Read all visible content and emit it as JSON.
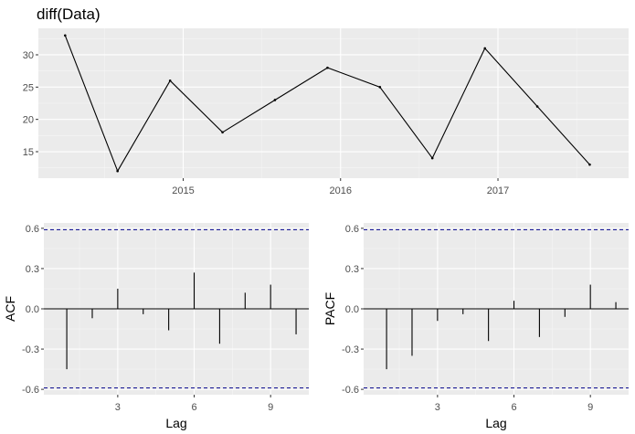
{
  "chart_data": [
    {
      "type": "line",
      "title": "diff(Data)",
      "xlabel": "",
      "ylabel": "",
      "x": [
        2014.25,
        2014.583,
        2014.917,
        2015.25,
        2015.583,
        2015.917,
        2016.25,
        2016.583,
        2016.917,
        2017.25,
        2017.583
      ],
      "values": [
        33,
        12,
        26,
        18,
        23,
        28,
        25,
        14,
        31,
        22,
        13
      ],
      "xticks": [
        "2015",
        "2016",
        "2017"
      ],
      "xtick_values": [
        2015,
        2016,
        2017
      ],
      "yticks": [
        "15",
        "20",
        "25",
        "30"
      ],
      "ytick_values": [
        15,
        20,
        25,
        30
      ],
      "xlim": [
        2014.08,
        2017.83
      ],
      "ylim": [
        10.9,
        34.1
      ],
      "grid": true,
      "colors": {
        "line": "#000000",
        "panel": "#ebebeb"
      }
    },
    {
      "type": "bar",
      "title": "",
      "xlabel": "Lag",
      "ylabel": "ACF",
      "lags": [
        1,
        2,
        3,
        4,
        5,
        6,
        7,
        8,
        9,
        10
      ],
      "values": [
        -0.45,
        -0.07,
        0.15,
        -0.04,
        -0.16,
        0.27,
        -0.26,
        0.12,
        0.18,
        -0.19
      ],
      "xticks": [
        "3",
        "6",
        "9"
      ],
      "xtick_values": [
        3,
        6,
        9
      ],
      "yticks": [
        "-0.6",
        "-0.3",
        "0.0",
        "0.3",
        "0.6"
      ],
      "ytick_values": [
        -0.6,
        -0.3,
        0.0,
        0.3,
        0.6
      ],
      "confidence_bound": 0.59,
      "xlim": [
        0.1,
        10.5
      ],
      "ylim": [
        -0.64,
        0.64
      ],
      "grid": true,
      "colors": {
        "bar": "#000000",
        "bound": "#00008b",
        "panel": "#ebebeb"
      }
    },
    {
      "type": "bar",
      "title": "",
      "xlabel": "Lag",
      "ylabel": "PACF",
      "lags": [
        1,
        2,
        3,
        4,
        5,
        6,
        7,
        8,
        9,
        10
      ],
      "values": [
        -0.45,
        -0.35,
        -0.09,
        -0.04,
        -0.24,
        0.06,
        -0.21,
        -0.06,
        0.18,
        0.05
      ],
      "xticks": [
        "3",
        "6",
        "9"
      ],
      "xtick_values": [
        3,
        6,
        9
      ],
      "yticks": [
        "-0.6",
        "-0.3",
        "0.0",
        "0.3",
        "0.6"
      ],
      "ytick_values": [
        -0.6,
        -0.3,
        0.0,
        0.3,
        0.6
      ],
      "confidence_bound": 0.59,
      "xlim": [
        0.1,
        10.5
      ],
      "ylim": [
        -0.64,
        0.64
      ],
      "grid": true,
      "colors": {
        "bar": "#000000",
        "bound": "#00008b",
        "panel": "#ebebeb"
      }
    }
  ]
}
